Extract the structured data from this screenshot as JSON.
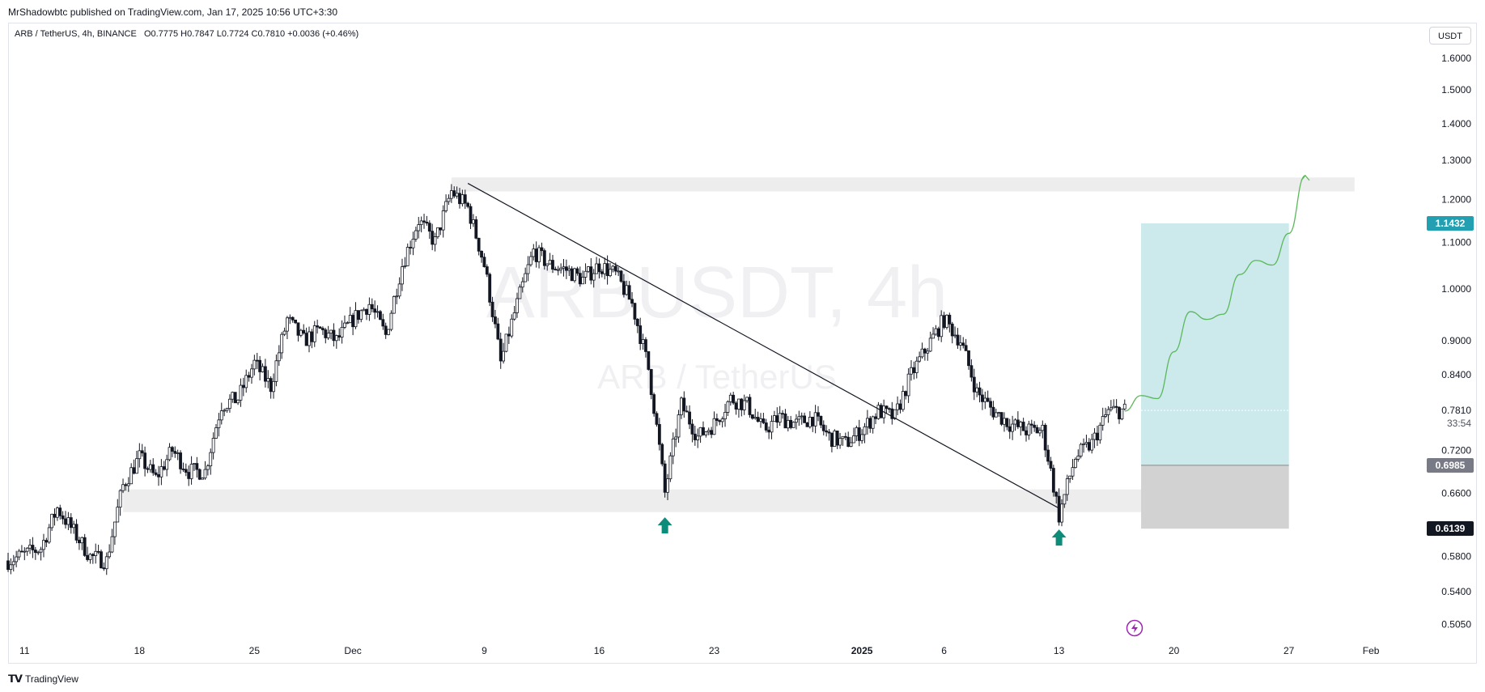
{
  "header": {
    "publisher_line": "MrShadowbtc published on TradingView.com, Jan 17, 2025 10:56 UTC+3:30",
    "symbol": "ARB / TetherUS, 4h, BINANCE",
    "open": "O0.7775",
    "high": "H0.7847",
    "low": "L0.7724",
    "close": "C0.7810",
    "change": "+0.0036 (+0.46%)",
    "currency": "USDT"
  },
  "watermark": {
    "line1": "ARBUSDT, 4h",
    "line2": "ARB / TetherUS"
  },
  "footer": {
    "brand": "TradingView",
    "logo_icon": "tradingview-logo-icon"
  },
  "price_badges": {
    "target": "1.1432",
    "current": "0.7810",
    "countdown": "33:54",
    "entry": "0.6985",
    "stop": "0.6139"
  },
  "colors": {
    "candle": "#131722",
    "zone": "#ededed",
    "target_zone": "#cce9ec",
    "stop_zone": "#d2d2d2",
    "projection": "#5cb85c",
    "arrow": "#0e8c7a",
    "target_badge": "#22a0b2",
    "entry_badge": "#787b86",
    "stop_badge": "#131722",
    "lightning": "#9c27b0"
  },
  "icons": {
    "arrow": "arrow-up-icon",
    "lightning": "lightning-icon"
  },
  "chart_data": {
    "type": "candlestick",
    "symbol": "ARBUSDT",
    "interval": "4h",
    "exchange": "BINANCE",
    "y_scale": "log",
    "ylim": [
      0.49,
      1.72
    ],
    "y_ticks": [
      "1.6000",
      "1.5000",
      "1.4000",
      "1.3000",
      "1.2000",
      "1.1000",
      "1.0000",
      "0.9000",
      "0.8400",
      "0.7810",
      "0.7200",
      "0.6600",
      "0.5800",
      "0.5400",
      "0.5050"
    ],
    "x_ticks": [
      "11",
      "18",
      "25",
      "Dec",
      "9",
      "16",
      "23",
      "2025",
      "6",
      "13",
      "20",
      "27",
      "Feb"
    ],
    "x_range": [
      "2024-11-10",
      "2025-02-04"
    ],
    "close_path": [
      [
        "2024-11-10",
        0.575
      ],
      [
        "2024-11-12",
        0.59
      ],
      [
        "2024-11-13",
        0.64
      ],
      [
        "2024-11-14",
        0.61
      ],
      [
        "2024-11-15",
        0.58
      ],
      [
        "2024-11-16",
        0.575
      ],
      [
        "2024-11-17",
        0.67
      ],
      [
        "2024-11-18",
        0.71
      ],
      [
        "2024-11-19",
        0.68
      ],
      [
        "2024-11-20",
        0.72
      ],
      [
        "2024-11-21",
        0.69
      ],
      [
        "2024-11-22",
        0.69
      ],
      [
        "2024-11-23",
        0.79
      ],
      [
        "2024-11-24",
        0.8
      ],
      [
        "2024-11-25",
        0.86
      ],
      [
        "2024-11-26",
        0.82
      ],
      [
        "2024-11-27",
        0.94
      ],
      [
        "2024-11-28",
        0.9
      ],
      [
        "2024-11-29",
        0.92
      ],
      [
        "2024-11-30",
        0.9
      ],
      [
        "2024-12-01",
        0.94
      ],
      [
        "2024-12-02",
        0.97
      ],
      [
        "2024-12-03",
        0.91
      ],
      [
        "2024-12-04",
        1.05
      ],
      [
        "2024-12-05",
        1.15
      ],
      [
        "2024-12-06",
        1.1
      ],
      [
        "2024-12-07",
        1.22
      ],
      [
        "2024-12-08",
        1.18
      ],
      [
        "2024-12-09",
        1.05
      ],
      [
        "2024-12-10",
        0.86
      ],
      [
        "2024-12-11",
        0.97
      ],
      [
        "2024-12-12",
        1.08
      ],
      [
        "2024-12-13",
        1.05
      ],
      [
        "2024-12-14",
        1.04
      ],
      [
        "2024-12-15",
        1.02
      ],
      [
        "2024-12-16",
        1.05
      ],
      [
        "2024-12-17",
        1.03
      ],
      [
        "2024-12-18",
        0.97
      ],
      [
        "2024-12-19",
        0.85
      ],
      [
        "2024-12-20",
        0.66
      ],
      [
        "2024-12-21",
        0.79
      ],
      [
        "2024-12-22",
        0.74
      ],
      [
        "2024-12-23",
        0.76
      ],
      [
        "2024-12-24",
        0.8
      ],
      [
        "2024-12-25",
        0.79
      ],
      [
        "2024-12-26",
        0.75
      ],
      [
        "2024-12-27",
        0.77
      ],
      [
        "2024-12-28",
        0.76
      ],
      [
        "2024-12-29",
        0.77
      ],
      [
        "2024-12-30",
        0.74
      ],
      [
        "2024-12-31",
        0.73
      ],
      [
        "2025-01-01",
        0.75
      ],
      [
        "2025-01-02",
        0.78
      ],
      [
        "2025-01-03",
        0.77
      ],
      [
        "2025-01-04",
        0.84
      ],
      [
        "2025-01-05",
        0.89
      ],
      [
        "2025-01-06",
        0.94
      ],
      [
        "2025-01-07",
        0.9
      ],
      [
        "2025-01-08",
        0.81
      ],
      [
        "2025-01-09",
        0.78
      ],
      [
        "2025-01-10",
        0.76
      ],
      [
        "2025-01-11",
        0.75
      ],
      [
        "2025-01-12",
        0.75
      ],
      [
        "2025-01-13",
        0.63
      ],
      [
        "2025-01-14",
        0.71
      ],
      [
        "2025-01-15",
        0.73
      ],
      [
        "2025-01-16",
        0.78
      ],
      [
        "2025-01-17",
        0.781
      ]
    ],
    "trendline": {
      "start": [
        "2024-12-08",
        1.24
      ],
      "end": [
        "2025-01-13",
        0.64
      ]
    },
    "support_zone": {
      "from": "2024-11-17",
      "to": "2025-01-24",
      "low": 0.635,
      "high": 0.665
    },
    "resistance_zone": {
      "from": "2024-12-07",
      "to": "2025-01-31",
      "low": 1.22,
      "high": 1.255
    },
    "position": {
      "from": "2025-01-18",
      "to": "2025-01-27",
      "target": 1.1432,
      "entry": 0.6985,
      "stop": 0.6139
    },
    "projection": [
      [
        "2025-01-17",
        0.78
      ],
      [
        "2025-01-18",
        0.805
      ],
      [
        "2025-01-19",
        0.8
      ],
      [
        "2025-01-20",
        0.88
      ],
      [
        "2025-01-21",
        0.955
      ],
      [
        "2025-01-22",
        0.94
      ],
      [
        "2025-01-23",
        0.95
      ],
      [
        "2025-01-24",
        1.03
      ],
      [
        "2025-01-25",
        1.06
      ],
      [
        "2025-01-26",
        1.05
      ],
      [
        "2025-01-27",
        1.12
      ],
      [
        "2025-01-28",
        1.26
      ]
    ],
    "markers": [
      {
        "date": "2024-12-20",
        "price": 0.618,
        "icon": "arrow-up"
      },
      {
        "date": "2025-01-13",
        "price": 0.603,
        "icon": "arrow-up"
      }
    ]
  }
}
